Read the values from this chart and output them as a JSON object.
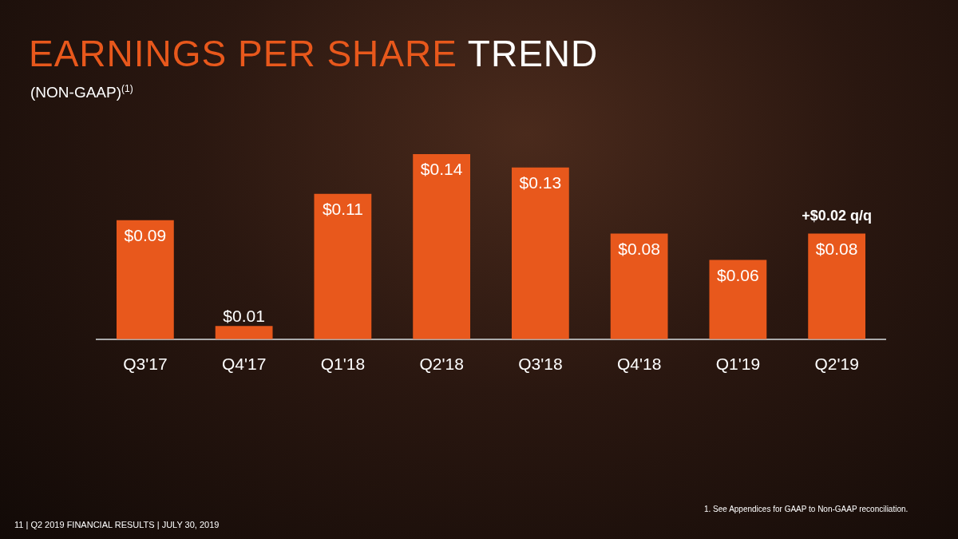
{
  "chart_data": {
    "type": "bar",
    "title": "EARNINGS PER SHARE TREND",
    "subtitle": "(NON-GAAP)$^{(1)}$",
    "categories": [
      "Q3'17",
      "Q4'17",
      "Q1'18",
      "Q2'18",
      "Q3'18",
      "Q4'18",
      "Q1'19",
      "Q2'19"
    ],
    "values": [
      0.09,
      0.01,
      0.11,
      0.14,
      0.13,
      0.08,
      0.06,
      0.08
    ],
    "value_labels": [
      "$0.09",
      "$0.01",
      "$0.11",
      "$0.14",
      "$0.13",
      "$0.08",
      "$0.06",
      "$0.08"
    ],
    "color": "#e8581c",
    "grid": false,
    "legend": false,
    "annotations": [
      {
        "text": "+$0.02 q/q",
        "x": "Q2'19",
        "y": 0.08
      },
      "1.   See Appendices for GAAP to Non-GAAP reconciliation.",
      "11  |  Q2 2019 FINANCIAL RESULTS | JULY 30, 2019"
    ]
  }
}
